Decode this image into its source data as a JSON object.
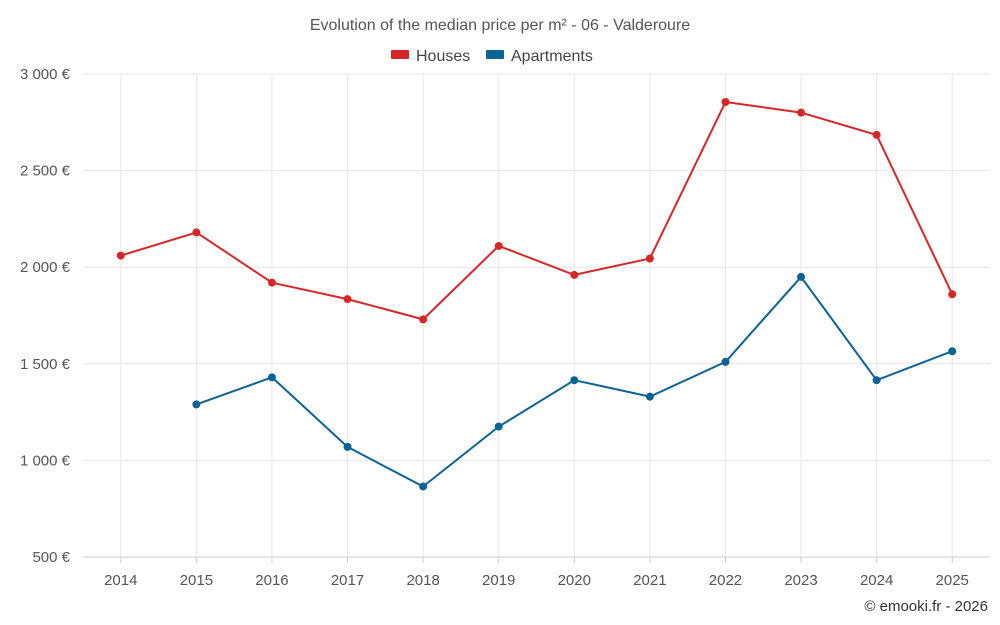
{
  "chart_data": {
    "type": "line",
    "title": "Evolution of the median price per m² - 06 - Valderoure",
    "categories": [
      "2014",
      "2015",
      "2016",
      "2017",
      "2018",
      "2019",
      "2020",
      "2021",
      "2022",
      "2023",
      "2024",
      "2025"
    ],
    "series": [
      {
        "name": "Houses",
        "color": "#d62728",
        "values": [
          2060,
          2180,
          1920,
          1835,
          1730,
          2110,
          1960,
          2045,
          2855,
          2800,
          2685,
          1860
        ]
      },
      {
        "name": "Apartments",
        "color": "#0b6395",
        "values": [
          null,
          1290,
          1430,
          1070,
          865,
          1175,
          1415,
          1330,
          1510,
          1950,
          1415,
          1565
        ]
      }
    ],
    "ylim": [
      500,
      3000
    ],
    "yticks": [
      500,
      1000,
      1500,
      2000,
      2500,
      3000
    ],
    "ytick_labels": [
      "500 €",
      "1 000 €",
      "1 500 €",
      "2 000 €",
      "2 500 €",
      "3 000 €"
    ],
    "xlabel": "",
    "ylabel": "",
    "grid": true,
    "legend": "top-center"
  },
  "credit": "© emooki.fr - 2026"
}
